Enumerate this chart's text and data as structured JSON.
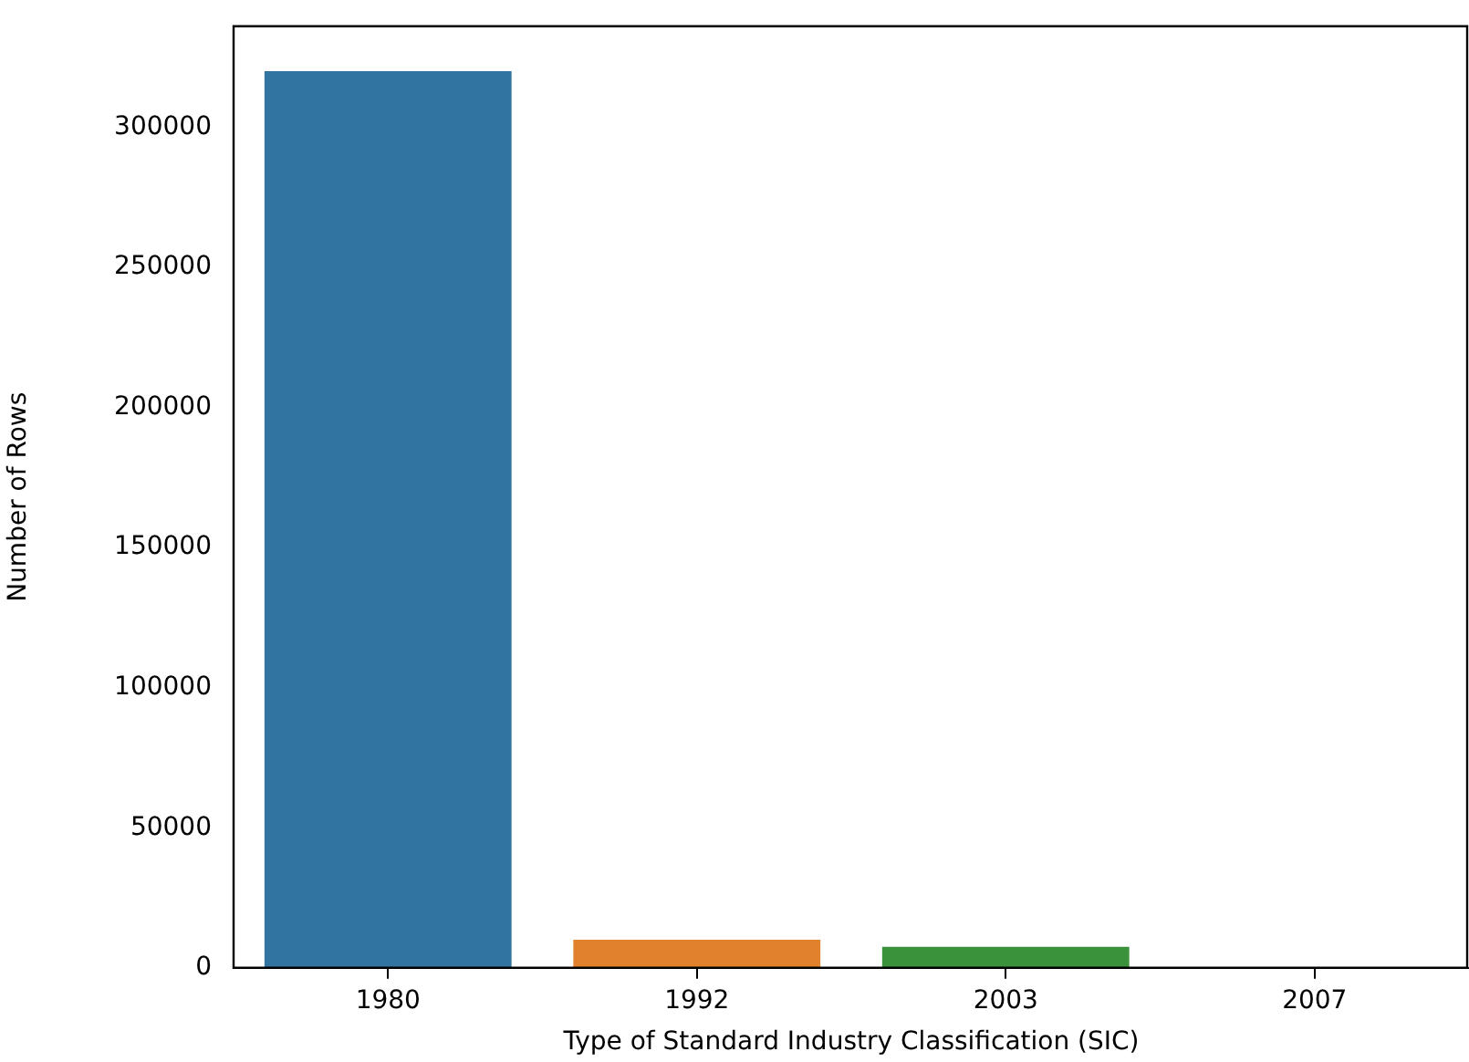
{
  "chart_data": {
    "type": "bar",
    "xlabel": "Type of Standard Industry Classification (SIC)",
    "ylabel": "Number of Rows",
    "categories": [
      "1980",
      "1992",
      "2003",
      "2007"
    ],
    "values": [
      320000,
      10000,
      7500,
      0
    ],
    "colors": [
      "#3274a1",
      "#e1812c",
      "#3a923a",
      "#c03d3e"
    ],
    "ylim": [
      0,
      336000
    ],
    "yticks": [
      0,
      50000,
      100000,
      150000,
      200000,
      250000,
      300000
    ],
    "grid": false,
    "legend": false
  }
}
